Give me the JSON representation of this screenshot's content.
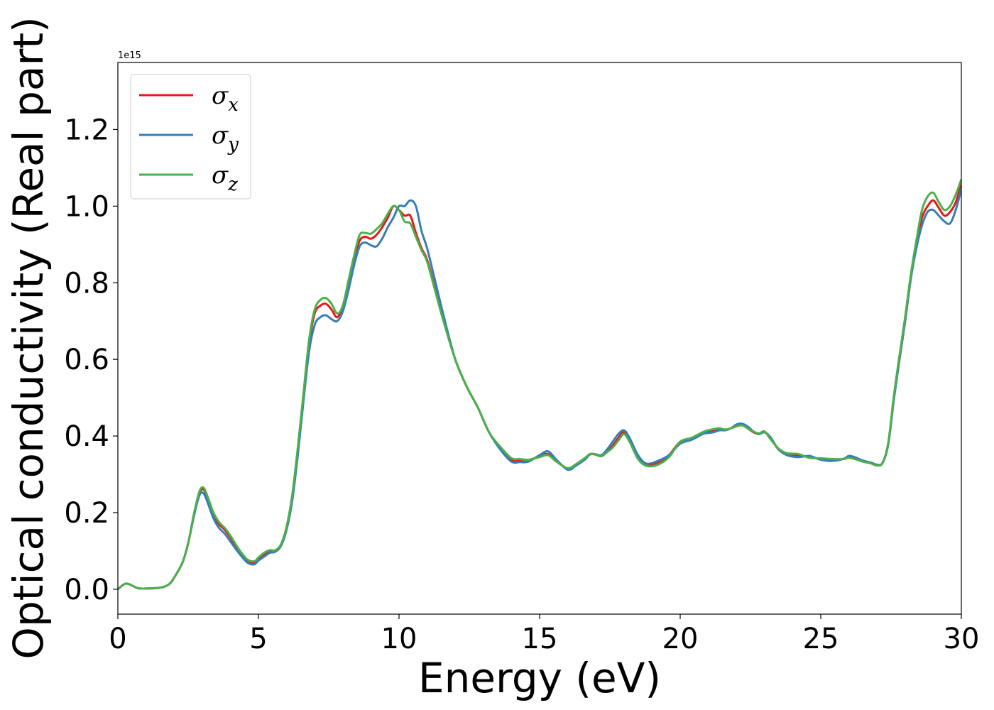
{
  "chart_data": {
    "type": "line",
    "title": "",
    "xlabel": "Energy (eV)",
    "ylabel": "Optical conductivity (Real part)",
    "y_offset_text": "1e15",
    "xlim": [
      0,
      30
    ],
    "ylim": [
      -0.065,
      1.375
    ],
    "x_ticks": [
      0,
      5,
      10,
      15,
      20,
      25,
      30
    ],
    "x_tick_labels": [
      "0",
      "5",
      "10",
      "15",
      "20",
      "25",
      "30"
    ],
    "y_ticks": [
      0.0,
      0.2,
      0.4,
      0.6,
      0.8,
      1.0,
      1.2
    ],
    "y_tick_labels": [
      "0.0",
      "0.2",
      "0.4",
      "0.6",
      "0.8",
      "1.0",
      "1.2"
    ],
    "grid": false,
    "legend_position": "top-left",
    "x": [
      0,
      0.3,
      0.7,
      1.0,
      1.5,
      1.8,
      2.0,
      2.3,
      2.5,
      2.7,
      2.9,
      3.05,
      3.2,
      3.4,
      3.6,
      3.8,
      4.0,
      4.3,
      4.6,
      4.85,
      5.0,
      5.2,
      5.4,
      5.6,
      5.8,
      6.0,
      6.2,
      6.4,
      6.6,
      6.8,
      7.0,
      7.2,
      7.4,
      7.6,
      7.8,
      8.0,
      8.2,
      8.4,
      8.6,
      8.8,
      9.0,
      9.2,
      9.4,
      9.6,
      9.8,
      10.0,
      10.2,
      10.4,
      10.6,
      10.8,
      11.0,
      11.3,
      11.6,
      12.0,
      12.4,
      12.8,
      13.2,
      13.6,
      14.0,
      14.3,
      14.6,
      15.0,
      15.3,
      15.6,
      16.0,
      16.3,
      16.6,
      16.8,
      17.0,
      17.2,
      17.4,
      17.6,
      17.8,
      18.0,
      18.2,
      18.5,
      18.8,
      19.2,
      19.6,
      20.0,
      20.4,
      20.8,
      21.0,
      21.2,
      21.4,
      21.6,
      21.8,
      22.0,
      22.2,
      22.4,
      22.6,
      22.8,
      23.0,
      23.2,
      23.5,
      23.8,
      24.2,
      24.6,
      25.0,
      25.4,
      25.8,
      26.0,
      26.2,
      26.5,
      26.8,
      27.0,
      27.2,
      27.4,
      27.6,
      27.8,
      28.0,
      28.2,
      28.4,
      28.6,
      28.8,
      29.0,
      29.2,
      29.4,
      29.6,
      29.8,
      30.0
    ],
    "series": [
      {
        "name": "σx",
        "color": "#e41a1c",
        "values": [
          0.0,
          0.015,
          0.003,
          0.002,
          0.004,
          0.012,
          0.03,
          0.07,
          0.12,
          0.19,
          0.25,
          0.26,
          0.235,
          0.195,
          0.17,
          0.155,
          0.135,
          0.1,
          0.075,
          0.07,
          0.08,
          0.09,
          0.1,
          0.1,
          0.115,
          0.16,
          0.24,
          0.36,
          0.5,
          0.64,
          0.72,
          0.74,
          0.745,
          0.73,
          0.71,
          0.74,
          0.8,
          0.86,
          0.91,
          0.92,
          0.915,
          0.925,
          0.945,
          0.97,
          1.0,
          0.99,
          0.975,
          0.975,
          0.93,
          0.89,
          0.86,
          0.78,
          0.7,
          0.6,
          0.53,
          0.475,
          0.41,
          0.37,
          0.338,
          0.335,
          0.336,
          0.348,
          0.353,
          0.335,
          0.315,
          0.325,
          0.34,
          0.353,
          0.352,
          0.348,
          0.36,
          0.375,
          0.395,
          0.41,
          0.39,
          0.345,
          0.325,
          0.33,
          0.35,
          0.385,
          0.395,
          0.408,
          0.412,
          0.415,
          0.418,
          0.415,
          0.42,
          0.428,
          0.43,
          0.42,
          0.41,
          0.405,
          0.41,
          0.395,
          0.365,
          0.352,
          0.35,
          0.345,
          0.34,
          0.338,
          0.34,
          0.345,
          0.343,
          0.335,
          0.33,
          0.325,
          0.33,
          0.38,
          0.5,
          0.6,
          0.7,
          0.81,
          0.9,
          0.97,
          1.0,
          1.015,
          0.995,
          0.975,
          0.985,
          1.01,
          1.06
        ]
      },
      {
        "name": "σy",
        "color": "#377eb8",
        "values": [
          0.0,
          0.015,
          0.003,
          0.002,
          0.004,
          0.012,
          0.03,
          0.07,
          0.12,
          0.19,
          0.245,
          0.25,
          0.225,
          0.185,
          0.16,
          0.145,
          0.125,
          0.095,
          0.07,
          0.065,
          0.075,
          0.085,
          0.095,
          0.098,
          0.113,
          0.155,
          0.23,
          0.35,
          0.49,
          0.62,
          0.69,
          0.71,
          0.715,
          0.705,
          0.7,
          0.725,
          0.78,
          0.845,
          0.895,
          0.905,
          0.898,
          0.895,
          0.915,
          0.945,
          0.97,
          1.0,
          1.0,
          1.015,
          1.0,
          0.935,
          0.89,
          0.8,
          0.71,
          0.6,
          0.53,
          0.475,
          0.41,
          0.365,
          0.333,
          0.332,
          0.333,
          0.35,
          0.36,
          0.338,
          0.312,
          0.323,
          0.338,
          0.352,
          0.352,
          0.35,
          0.365,
          0.385,
          0.405,
          0.415,
          0.395,
          0.35,
          0.328,
          0.335,
          0.35,
          0.38,
          0.39,
          0.405,
          0.408,
          0.41,
          0.415,
          0.415,
          0.42,
          0.43,
          0.432,
          0.425,
          0.412,
          0.405,
          0.41,
          0.398,
          0.365,
          0.35,
          0.345,
          0.348,
          0.338,
          0.335,
          0.34,
          0.348,
          0.345,
          0.336,
          0.33,
          0.325,
          0.33,
          0.378,
          0.495,
          0.6,
          0.7,
          0.81,
          0.89,
          0.95,
          0.985,
          0.99,
          0.975,
          0.96,
          0.955,
          0.99,
          1.045
        ]
      },
      {
        "name": "σz",
        "color": "#4daf4a",
        "values": [
          0.0,
          0.015,
          0.003,
          0.002,
          0.004,
          0.012,
          0.03,
          0.07,
          0.12,
          0.195,
          0.255,
          0.265,
          0.24,
          0.2,
          0.175,
          0.16,
          0.14,
          0.105,
          0.078,
          0.073,
          0.083,
          0.095,
          0.102,
          0.102,
          0.117,
          0.163,
          0.245,
          0.37,
          0.51,
          0.65,
          0.73,
          0.755,
          0.76,
          0.745,
          0.72,
          0.74,
          0.805,
          0.87,
          0.925,
          0.93,
          0.928,
          0.94,
          0.955,
          0.98,
          1.0,
          0.99,
          0.96,
          0.955,
          0.92,
          0.885,
          0.855,
          0.775,
          0.695,
          0.6,
          0.53,
          0.475,
          0.41,
          0.372,
          0.342,
          0.34,
          0.338,
          0.345,
          0.35,
          0.333,
          0.316,
          0.327,
          0.342,
          0.353,
          0.351,
          0.347,
          0.358,
          0.37,
          0.388,
          0.405,
          0.385,
          0.34,
          0.322,
          0.325,
          0.345,
          0.385,
          0.395,
          0.41,
          0.415,
          0.418,
          0.42,
          0.417,
          0.42,
          0.425,
          0.428,
          0.42,
          0.412,
          0.407,
          0.412,
          0.393,
          0.367,
          0.355,
          0.353,
          0.343,
          0.342,
          0.34,
          0.34,
          0.343,
          0.34,
          0.333,
          0.328,
          0.323,
          0.33,
          0.382,
          0.505,
          0.61,
          0.71,
          0.82,
          0.91,
          0.99,
          1.025,
          1.035,
          1.01,
          0.99,
          1.0,
          1.03,
          1.07
        ]
      }
    ]
  },
  "legend": {
    "items": [
      {
        "symbol": "σ",
        "sub": "x",
        "color": "#e41a1c"
      },
      {
        "symbol": "σ",
        "sub": "y",
        "color": "#377eb8"
      },
      {
        "symbol": "σ",
        "sub": "z",
        "color": "#4daf4a"
      }
    ]
  }
}
